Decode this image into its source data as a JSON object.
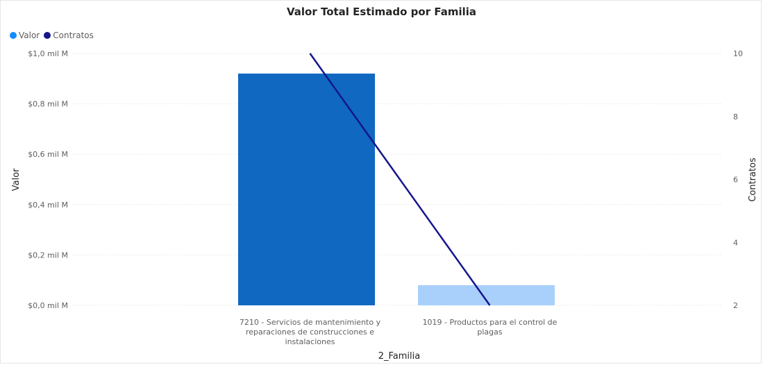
{
  "chart_data": {
    "type": "bar",
    "title": "Valor Total Estimado por Familia",
    "xlabel": "2_Familia",
    "ylabel": "Valor",
    "y2label": "Contratos",
    "categories": [
      "7210 - Servicios de mantenimiento y reparaciones de construcciones e instalaciones",
      "1019 - Productos para el control de plagas"
    ],
    "category_lines": [
      [
        "7210 - Servicios de mantenimiento y",
        "reparaciones de construcciones e",
        "instalaciones"
      ],
      [
        "1019 - Productos para el control de",
        "plagas"
      ]
    ],
    "series": [
      {
        "name": "Valor",
        "kind": "bar",
        "axis": "left",
        "values": [
          0.92,
          0.08
        ],
        "bar_colors": [
          "#1068c0",
          "#a8d0fb"
        ]
      },
      {
        "name": "Contratos",
        "kind": "line",
        "axis": "right",
        "values": [
          10,
          2
        ],
        "color": "#14168c"
      }
    ],
    "ylim": [
      0,
      1.0
    ],
    "y_ticks": [
      0,
      0.2,
      0.4,
      0.6,
      0.8,
      1.0
    ],
    "y_tick_labels": [
      "$0,0 mil M",
      "$0,2 mil M",
      "$0,4 mil M",
      "$0,6 mil M",
      "$0,8 mil M",
      "$1,0 mil M"
    ],
    "y2lim": [
      2,
      10
    ],
    "y2_ticks": [
      2,
      4,
      6,
      8,
      10
    ],
    "y2_tick_labels": [
      "2",
      "4",
      "6",
      "8",
      "10"
    ],
    "legend_position": "top-left",
    "grid": true
  },
  "colors": {
    "legend_valor": "#118dff",
    "legend_contratos": "#14168c",
    "grid": "#d9d9d9"
  }
}
